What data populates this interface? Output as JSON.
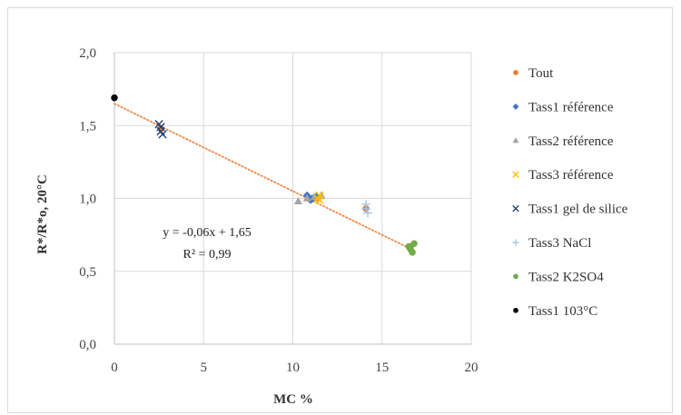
{
  "chart_data": {
    "type": "scatter",
    "title": "",
    "xlabel": "MC %",
    "ylabel": "R*/R*o, 20°C",
    "xlim": [
      0,
      20
    ],
    "ylim": [
      0.0,
      2.0
    ],
    "x_ticks": [
      0,
      5,
      10,
      15,
      20
    ],
    "x_tick_labels": [
      "0",
      "5",
      "10",
      "15",
      "20"
    ],
    "y_ticks": [
      0.0,
      0.5,
      1.0,
      1.5,
      2.0
    ],
    "y_tick_labels": [
      "0,0",
      "0,5",
      "1,0",
      "1,5",
      "2,0"
    ],
    "grid": true,
    "legend_position": "right",
    "series": [
      {
        "name": "Tout",
        "marker": "circle",
        "color": "#ED7D31",
        "points": [
          [
            2.6,
            1.48
          ],
          [
            10.9,
            1.0
          ],
          [
            11.4,
            1.0
          ],
          [
            14.1,
            0.93
          ],
          [
            16.6,
            0.67
          ]
        ]
      },
      {
        "name": "Tass1 référence",
        "marker": "diamond",
        "color": "#4472C4",
        "points": [
          [
            10.8,
            1.02
          ],
          [
            10.9,
            1.0
          ],
          [
            11.0,
            0.99
          ],
          [
            11.1,
            1.0
          ],
          [
            11.3,
            1.01
          ]
        ]
      },
      {
        "name": "Tass2 référence",
        "marker": "triangle",
        "color": "#A5A5A5",
        "points": [
          [
            10.3,
            0.98
          ],
          [
            10.8,
            1.0
          ],
          [
            11.2,
            1.01
          ],
          [
            11.6,
            1.02
          ]
        ]
      },
      {
        "name": "Tass3 référence",
        "marker": "x",
        "color": "#FFC000",
        "points": [
          [
            11.4,
            1.0
          ],
          [
            11.5,
            1.02
          ],
          [
            11.5,
            0.99
          ]
        ]
      },
      {
        "name": "Tass1 gel de silice",
        "marker": "x",
        "color": "#264478",
        "points": [
          [
            2.5,
            1.51
          ],
          [
            2.6,
            1.49
          ],
          [
            2.6,
            1.46
          ],
          [
            2.7,
            1.44
          ]
        ]
      },
      {
        "name": "Tass3 NaCl",
        "marker": "plus",
        "color": "#9DC3E6",
        "points": [
          [
            14.1,
            0.96
          ],
          [
            14.1,
            0.93
          ],
          [
            14.2,
            0.9
          ]
        ]
      },
      {
        "name": "Tass2 K2SO4",
        "marker": "circle",
        "color": "#70AD47",
        "points": [
          [
            16.5,
            0.67
          ],
          [
            16.6,
            0.65
          ],
          [
            16.7,
            0.63
          ],
          [
            16.8,
            0.69
          ]
        ]
      },
      {
        "name": "Tass1 103°C",
        "marker": "circle",
        "color": "#000000",
        "points": [
          [
            0.0,
            1.69
          ]
        ]
      }
    ],
    "trendline": {
      "color": "#ED7D31",
      "style": "dotted",
      "slope": -0.06,
      "intercept": 1.65,
      "x_range": [
        0,
        16.6
      ],
      "equation_label": "y = -0,06x + 1,65",
      "r2_label": "R² = 0,99"
    }
  }
}
